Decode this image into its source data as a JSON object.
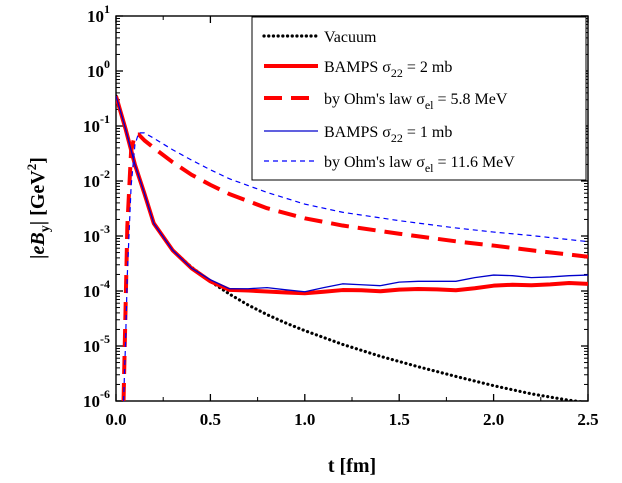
{
  "chart_data": {
    "type": "line",
    "title": "",
    "xlabel": "t [fm]",
    "ylabel": "|eB",
    "ylabel_sub": "y",
    "ylabel_unit": "| [GeV",
    "ylabel_sup": "2",
    "ylabel_end": "]",
    "xlim": [
      0,
      2.5
    ],
    "ylim": [
      1e-06,
      10
    ],
    "yscale": "log",
    "xticks": [
      0.0,
      0.5,
      1.0,
      1.5,
      2.0,
      2.5
    ],
    "xtick_labels": [
      "0.0",
      "0.5",
      "1.0",
      "1.5",
      "2.0",
      "2.5"
    ],
    "yticks": [
      1e-06,
      1e-05,
      0.0001,
      0.001,
      0.01,
      0.1,
      1,
      10
    ],
    "ytick_labels": [
      {
        "base": "10",
        "exp": "-6"
      },
      {
        "base": "10",
        "exp": "-5"
      },
      {
        "base": "10",
        "exp": "-4"
      },
      {
        "base": "10",
        "exp": "-3"
      },
      {
        "base": "10",
        "exp": "-2"
      },
      {
        "base": "10",
        "exp": "-1"
      },
      {
        "base": "10",
        "exp": "0"
      },
      {
        "base": "10",
        "exp": "1"
      }
    ],
    "grid": false,
    "legend_position": "top-right",
    "series": [
      {
        "legend": [
          {
            "t": "Vacuum"
          }
        ],
        "color": "#000000",
        "style": "dotted",
        "x": [
          0.0,
          0.05,
          0.1,
          0.15,
          0.2,
          0.25,
          0.3,
          0.4,
          0.5,
          0.6,
          0.7,
          0.8,
          0.9,
          1.0,
          1.2,
          1.4,
          1.6,
          1.8,
          2.0,
          2.2,
          2.4,
          2.5
        ],
        "y": [
          0.35,
          0.09,
          0.02,
          0.006,
          0.0017,
          0.00095,
          0.00055,
          0.00027,
          0.00015,
          8.83e-05,
          5.56e-05,
          3.72e-05,
          2.61e-05,
          1.9e-05,
          1.07e-05,
          6.5e-06,
          4.2e-06,
          2.8e-06,
          1.9e-06,
          1.35e-06,
          1.03e-06,
          9.3e-07
        ]
      },
      {
        "legend": [
          {
            "t": "BAMPS σ"
          },
          {
            "sub": "22"
          },
          {
            "t": " = 2 mb"
          }
        ],
        "color": "#ff0000",
        "style": "solid-thick",
        "x": [
          0.0,
          0.05,
          0.1,
          0.15,
          0.2,
          0.3,
          0.4,
          0.5,
          0.6,
          0.7,
          0.8,
          0.9,
          1.0,
          1.1,
          1.2,
          1.3,
          1.4,
          1.5,
          1.6,
          1.7,
          1.8,
          1.9,
          2.0,
          2.1,
          2.2,
          2.3,
          2.4,
          2.5
        ],
        "y": [
          0.35,
          0.09,
          0.02,
          0.006,
          0.0017,
          0.00055,
          0.00026,
          0.00015,
          0.000105,
          0.000102,
          9.8e-05,
          9.4e-05,
          9.1e-05,
          9.7e-05,
          0.000104,
          0.000103,
          9.9e-05,
          0.000106,
          0.000109,
          0.000107,
          0.000103,
          0.000112,
          0.000125,
          0.00013,
          0.000127,
          0.000132,
          0.00014,
          0.000135
        ]
      },
      {
        "legend": [
          {
            "t": "by Ohm's law σ"
          },
          {
            "sub": "el"
          },
          {
            "t": " = 5.8 MeV"
          }
        ],
        "color": "#ff0000",
        "style": "dashed-thick",
        "x": [
          0.04,
          0.06,
          0.08,
          0.1,
          0.12,
          0.15,
          0.2,
          0.3,
          0.4,
          0.5,
          0.6,
          0.8,
          1.0,
          1.2,
          1.5,
          1.8,
          2.0,
          2.2,
          2.5
        ],
        "y": [
          1e-06,
          0.0015,
          0.035,
          0.07,
          0.07,
          0.055,
          0.04,
          0.022,
          0.013,
          0.0085,
          0.0058,
          0.0032,
          0.0021,
          0.00155,
          0.0011,
          0.0008,
          0.00067,
          0.00055,
          0.00042
        ]
      },
      {
        "legend": [
          {
            "t": "BAMPS σ"
          },
          {
            "sub": "22"
          },
          {
            "t": " = 1 mb"
          }
        ],
        "color": "#0000cc",
        "style": "solid-thin",
        "x": [
          0.0,
          0.05,
          0.1,
          0.15,
          0.2,
          0.3,
          0.4,
          0.5,
          0.6,
          0.7,
          0.8,
          0.9,
          1.0,
          1.1,
          1.2,
          1.3,
          1.4,
          1.5,
          1.6,
          1.7,
          1.8,
          1.9,
          2.0,
          2.1,
          2.2,
          2.3,
          2.4,
          2.5
        ],
        "y": [
          0.35,
          0.09,
          0.02,
          0.006,
          0.0017,
          0.00055,
          0.00026,
          0.00016,
          0.00011,
          0.00011,
          0.000115,
          0.000105,
          9.7e-05,
          0.000115,
          0.000135,
          0.00013,
          0.000125,
          0.000145,
          0.00015,
          0.00015,
          0.00015,
          0.000175,
          0.000195,
          0.00019,
          0.000175,
          0.00018,
          0.00019,
          0.000195
        ]
      },
      {
        "legend": [
          {
            "t": "by Ohm's law σ"
          },
          {
            "sub": "el"
          },
          {
            "t": " = 11.6 MeV"
          }
        ],
        "color": "#0000ff",
        "style": "dashed-thin",
        "x": [
          0.04,
          0.05,
          0.06,
          0.08,
          0.1,
          0.12,
          0.15,
          0.2,
          0.3,
          0.4,
          0.5,
          0.6,
          0.8,
          1.0,
          1.2,
          1.5,
          1.8,
          2.0,
          2.2,
          2.5
        ],
        "y": [
          1e-06,
          1e-05,
          0.0002,
          0.008,
          0.045,
          0.075,
          0.075,
          0.06,
          0.037,
          0.024,
          0.016,
          0.011,
          0.0062,
          0.0038,
          0.0027,
          0.0019,
          0.0014,
          0.00118,
          0.00102,
          0.00079
        ]
      }
    ]
  }
}
